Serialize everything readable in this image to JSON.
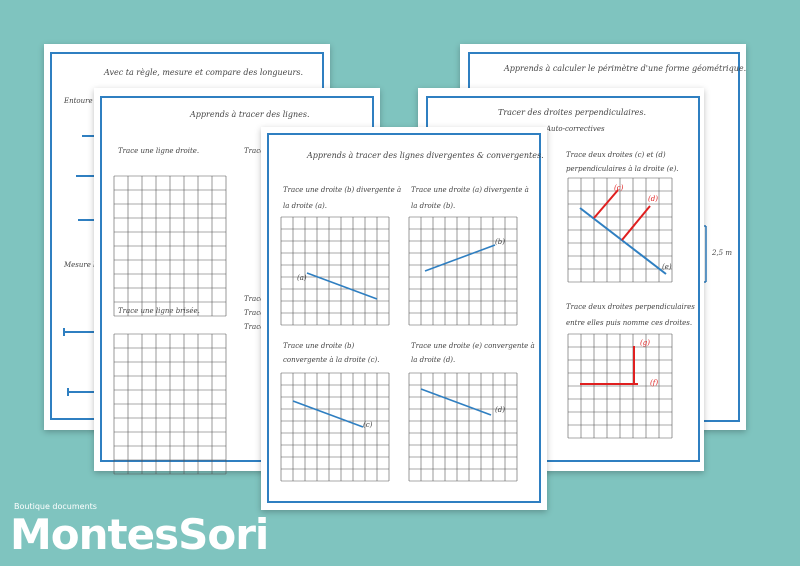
{
  "sheets": {
    "left_back": {
      "title": "Avec ta règle, mesure et compare des longueurs.",
      "side_text_1": "Entoure de",
      "side_text_2": "Mesure la"
    },
    "left_mid": {
      "title": "Apprends à tracer des lignes.",
      "label_1": "Trace une ligne droite.",
      "label_2": "Trace",
      "label_3": "Trace une ligne brisée.",
      "label_4": "Trace",
      "label_5": "Trace",
      "label_6": "Trace"
    },
    "right_back": {
      "title": "Apprends à calculer le périmètre d'une forme géométrique.",
      "measure": "2,5 m"
    },
    "right_mid": {
      "title": "Tracer des droites perpendiculaires.",
      "subtitle": "Auto-correctives",
      "instr_1_line1": "Trace deux droites (c) et (d)",
      "instr_1_line2": "perpendiculaires à la droite (e).",
      "instr_2_line1": "Trace deux droites perpendiculaires",
      "instr_2_line2": "entre elles puis nomme ces droites.",
      "label_c": "(c)",
      "label_d": "(d)",
      "label_e": "(e)",
      "label_g": "(g)",
      "label_f": "(f)"
    },
    "front": {
      "title": "Apprends à tracer des lignes divergentes & convergentes.",
      "q1_line1": "Trace une droite (b) divergente à",
      "q1_line2": "la droite (a).",
      "q2_line1": "Trace une droite (a) divergente à",
      "q2_line2": "la droite (b).",
      "q3_line1": "Trace une droite (b)",
      "q3_line2": "convergente à la droite (c).",
      "q4_line1": "Trace une droite (e) convergente à",
      "q4_line2": "la droite (d).",
      "label_a": "(a)",
      "label_b": "(b)",
      "label_c": "(c)",
      "label_d": "(d)"
    }
  },
  "brand": {
    "subtitle": "Boutique documents",
    "name": "MontesSori"
  },
  "colors": {
    "background": "#7fc4bf",
    "frame_blue": "#2f7fc1",
    "line_blue": "#2f7fc1",
    "line_red": "#e02020"
  }
}
